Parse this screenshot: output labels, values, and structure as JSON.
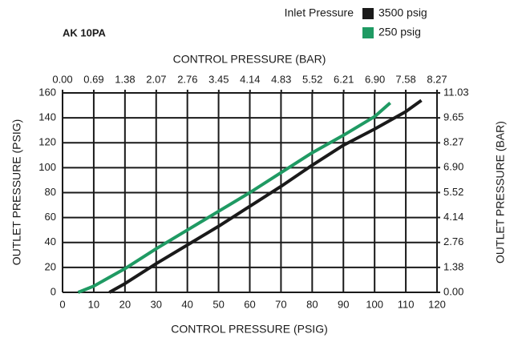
{
  "chart_data": {
    "type": "line",
    "title": "AK 10PA",
    "legend_title": "Inlet Pressure",
    "xlabel": "CONTROL PRESSURE (PSIG)",
    "x2label": "CONTROL PRESSURE (BAR)",
    "ylabel": "OUTLET PRESSURE (PSIG)",
    "y2label": "OUTLET PRESSURE (BAR)",
    "xlim": [
      0,
      120
    ],
    "xticks": [
      0,
      10,
      20,
      30,
      40,
      50,
      60,
      70,
      80,
      90,
      100,
      110,
      120
    ],
    "ylim": [
      0,
      160
    ],
    "yticks": [
      0,
      20,
      40,
      60,
      80,
      100,
      120,
      140,
      160
    ],
    "x2lim": [
      0,
      8.27
    ],
    "x2ticks": [
      {
        "value": 0,
        "label": "0.00"
      },
      0.69,
      1.38,
      2.07,
      2.76,
      3.45,
      4.14,
      4.83,
      5.52,
      6.21,
      {
        "value": 6.9,
        "label": "6.90"
      },
      7.58,
      8.27
    ],
    "y2lim": [
      0,
      11.03
    ],
    "y2ticks": [
      {
        "value": 0,
        "label": "0.00"
      },
      1.38,
      2.76,
      4.14,
      5.52,
      {
        "value": 6.9,
        "label": "6.90"
      },
      8.27,
      9.65,
      11.03
    ],
    "grid": true,
    "series": [
      {
        "name": "3500 psig",
        "color": "#1a1a1a",
        "x": [
          15,
          20,
          30,
          40,
          50,
          60,
          70,
          80,
          90,
          100,
          110,
          115
        ],
        "values": [
          0,
          7,
          23,
          38,
          53,
          69,
          85,
          102,
          118,
          131,
          145,
          154
        ]
      },
      {
        "name": "250 psig",
        "color": "#1f9a63",
        "x": [
          5,
          10,
          20,
          30,
          40,
          50,
          60,
          70,
          80,
          90,
          100,
          105
        ],
        "values": [
          0,
          5,
          19,
          35,
          50,
          65,
          80,
          96,
          112,
          126,
          141,
          152
        ]
      }
    ]
  }
}
